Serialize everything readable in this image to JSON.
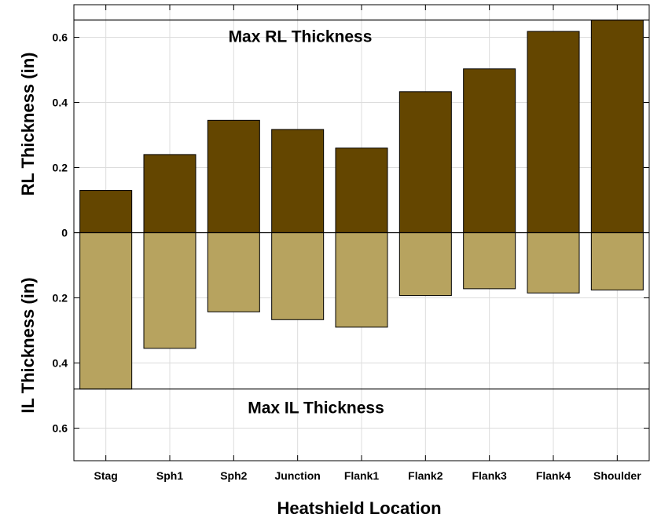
{
  "chart_data": {
    "type": "bar",
    "xlabel": "Heatshield Location",
    "ylabel_top": "RL Thickness (in)",
    "ylabel_bottom": "IL Thickness (in)",
    "categories": [
      "Stag",
      "Sph1",
      "Sph2",
      "Junction",
      "Flank1",
      "Flank2",
      "Flank3",
      "Flank4",
      "Shoulder"
    ],
    "series": [
      {
        "values": [
          0.13,
          0.24,
          0.345,
          0.317,
          0.26,
          0.433,
          0.503,
          0.618,
          0.653
        ],
        "direction": "up",
        "color": "#644600"
      },
      {
        "values": [
          0.48,
          0.355,
          0.243,
          0.267,
          0.29,
          0.193,
          0.172,
          0.185,
          0.176
        ],
        "direction": "down",
        "color": "#b7a35f"
      }
    ],
    "ylim": [
      -0.7,
      0.7
    ],
    "yticks": [
      -0.6,
      -0.4,
      -0.2,
      0,
      0.2,
      0.4,
      0.6
    ],
    "ytick_labels": [
      "0.6",
      "0.4",
      "0.2",
      "0",
      "0.2",
      "0.4",
      "0.6"
    ],
    "reference_lines": [
      {
        "value": 0.653,
        "label": "Max RL Thickness"
      },
      {
        "value": -0.48,
        "label": "Max IL Thickness"
      }
    ],
    "grid": true
  }
}
